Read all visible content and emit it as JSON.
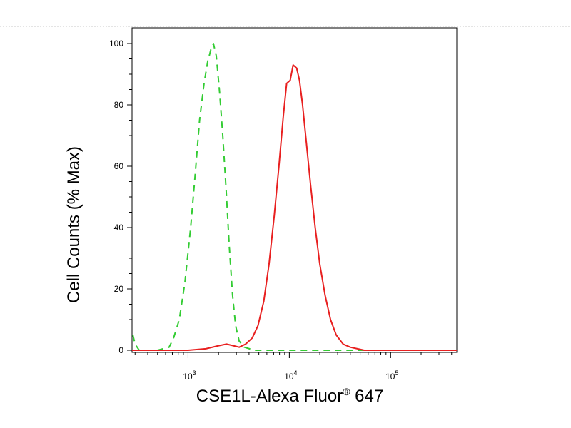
{
  "chart_data": {
    "type": "line",
    "title": "",
    "xlabel": "CSE1L-Alexa Fluor",
    "xlabel_superscript": "®",
    "xlabel_suffix": " 647",
    "ylabel": "Cell Counts (% Max)",
    "x_scale": "log",
    "xlim": [
      280,
      450000
    ],
    "ylim": [
      0,
      100
    ],
    "y_ticks": [
      0,
      20,
      40,
      60,
      80,
      100
    ],
    "x_ticks": [
      {
        "value": 1000,
        "base": "10",
        "exp": "3"
      },
      {
        "value": 10000,
        "base": "10",
        "exp": "4"
      },
      {
        "value": 100000,
        "base": "10",
        "exp": "5"
      }
    ],
    "grid": false,
    "legend": "none",
    "series": [
      {
        "color": "#33cc33",
        "line_style": "dashed",
        "points": [
          [
            285,
            5
          ],
          [
            300,
            2
          ],
          [
            330,
            0
          ],
          [
            500,
            0
          ],
          [
            650,
            1
          ],
          [
            720,
            4
          ],
          [
            820,
            10
          ],
          [
            930,
            22
          ],
          [
            1060,
            40
          ],
          [
            1180,
            58
          ],
          [
            1300,
            75
          ],
          [
            1440,
            87
          ],
          [
            1560,
            94
          ],
          [
            1680,
            98
          ],
          [
            1780,
            100
          ],
          [
            1900,
            96
          ],
          [
            2050,
            84
          ],
          [
            2200,
            70
          ],
          [
            2380,
            52
          ],
          [
            2550,
            34
          ],
          [
            2750,
            18
          ],
          [
            2950,
            8
          ],
          [
            3200,
            3
          ],
          [
            3600,
            1
          ],
          [
            4500,
            0
          ],
          [
            450000,
            0
          ]
        ]
      },
      {
        "color": "#e82020",
        "line_style": "solid",
        "points": [
          [
            280,
            0
          ],
          [
            1000,
            0
          ],
          [
            1500,
            0.5
          ],
          [
            2000,
            1.5
          ],
          [
            2400,
            2
          ],
          [
            2800,
            1.5
          ],
          [
            3200,
            1
          ],
          [
            3700,
            2
          ],
          [
            4300,
            4
          ],
          [
            4900,
            8
          ],
          [
            5600,
            16
          ],
          [
            6300,
            28
          ],
          [
            7100,
            44
          ],
          [
            7900,
            60
          ],
          [
            8700,
            76
          ],
          [
            9400,
            87
          ],
          [
            10200,
            88
          ],
          [
            10900,
            93
          ],
          [
            11800,
            92
          ],
          [
            12600,
            88
          ],
          [
            13500,
            80
          ],
          [
            14700,
            68
          ],
          [
            16200,
            54
          ],
          [
            18000,
            40
          ],
          [
            20000,
            28
          ],
          [
            22500,
            18
          ],
          [
            25500,
            10
          ],
          [
            29000,
            5
          ],
          [
            34000,
            2
          ],
          [
            40000,
            1
          ],
          [
            55000,
            0
          ],
          [
            450000,
            0
          ]
        ]
      }
    ]
  }
}
